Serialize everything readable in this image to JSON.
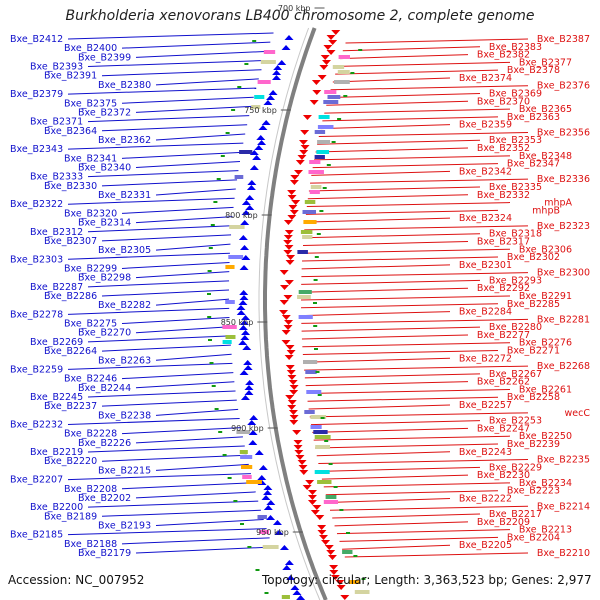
{
  "title": "Burkholderia xenovorans LB400 chromosome 2, complete genome",
  "footer": {
    "accession": "Accession: NC_007952",
    "summary": "Topology: circular; Length: 3,363,523 bp; Genes: 2,977"
  },
  "scale_labels": [
    "700 kbp",
    "750 kbp",
    "800 kbp",
    "850 kbp",
    "900 kbp",
    "950 kbp"
  ],
  "left_labels": [
    "Bxe_B2412",
    "Bxe_B2400",
    "Bxe_B2399",
    "Bxe_B2393",
    "Bxe_B2391",
    "Bxe_B2380",
    "Bxe_B2379",
    "Bxe_B2375",
    "Bxe_B2372",
    "Bxe_B2371",
    "Bxe_B2364",
    "Bxe_B2362",
    "Bxe_B2343",
    "Bxe_B2341",
    "Bxe_B2340",
    "Bxe_B2333",
    "Bxe_B2330",
    "Bxe_B2331",
    "Bxe_B2322",
    "Bxe_B2320",
    "Bxe_B2314",
    "Bxe_B2312",
    "Bxe_B2307",
    "Bxe_B2305",
    "Bxe_B2303",
    "Bxe_B2299",
    "Bxe_B2298",
    "Bxe_B2287",
    "Bxe_B2286",
    "Bxe_B2282",
    "Bxe_B2278",
    "Bxe_B2275",
    "Bxe_B2270",
    "Bxe_B2269",
    "Bxe_B2264",
    "Bxe_B2263",
    "Bxe_B2259",
    "Bxe_B2246",
    "Bxe_B2244",
    "Bxe_B2245",
    "Bxe_B2237",
    "Bxe_B2238",
    "Bxe_B2232",
    "Bxe_B2228",
    "Bxe_B2226",
    "Bxe_B2219",
    "Bxe_B2220",
    "Bxe_B2215",
    "Bxe_B2207",
    "Bxe_B2208",
    "Bxe_B2202",
    "Bxe_B2200",
    "Bxe_B2189",
    "Bxe_B2193",
    "Bxe_B2185",
    "Bxe_B2188",
    "Bxe_B2179"
  ],
  "right_labels": [
    "Bxe_B2387",
    "Bxe_B2383",
    "Bxe_B2382",
    "Bxe_B2377",
    "Bxe_B2378",
    "Bxe_B2374",
    "Bxe_B2376",
    "Bxe_B2369",
    "Bxe_B2370",
    "Bxe_B2365",
    "Bxe_B2363",
    "Bxe_B2359",
    "Bxe_B2356",
    "Bxe_B2353",
    "Bxe_B2352",
    "Bxe_B2348",
    "Bxe_B2347",
    "Bxe_B2342",
    "Bxe_B2336",
    "Bxe_B2335",
    "Bxe_B2332",
    "mhpA",
    "mhpB",
    "Bxe_B2324",
    "Bxe_B2323",
    "Bxe_B2318",
    "Bxe_B2317",
    "Bxe_B2306",
    "Bxe_B2302",
    "Bxe_B2301",
    "Bxe_B2300",
    "Bxe_B2293",
    "Bxe_B2292",
    "Bxe_B2291",
    "Bxe_B2285",
    "Bxe_B2284",
    "Bxe_B2281",
    "Bxe_B2280",
    "Bxe_B2277",
    "Bxe_B2276",
    "Bxe_B2271",
    "Bxe_B2272",
    "Bxe_B2268",
    "Bxe_B2267",
    "Bxe_B2262",
    "Bxe_B2261",
    "Bxe_B2258",
    "Bxe_B2257",
    "wecC",
    "Bxe_B2253",
    "Bxe_B2247",
    "Bxe_B2250",
    "Bxe_B2239",
    "Bxe_B2243",
    "Bxe_B2235",
    "Bxe_B2229",
    "Bxe_B2230",
    "Bxe_B2234",
    "Bxe_B2223",
    "Bxe_B2222",
    "Bxe_B2214",
    "Bxe_B2217",
    "Bxe_B2209",
    "Bxe_B2213",
    "Bxe_B2204",
    "Bxe_B2205",
    "Bxe_B2210"
  ],
  "colors": {
    "left_labels": "#1010cc",
    "right_labels": "#dd1111",
    "minus_strand": "#0000ee",
    "plus_strand": "#ee0000",
    "axis": "#808080"
  }
}
